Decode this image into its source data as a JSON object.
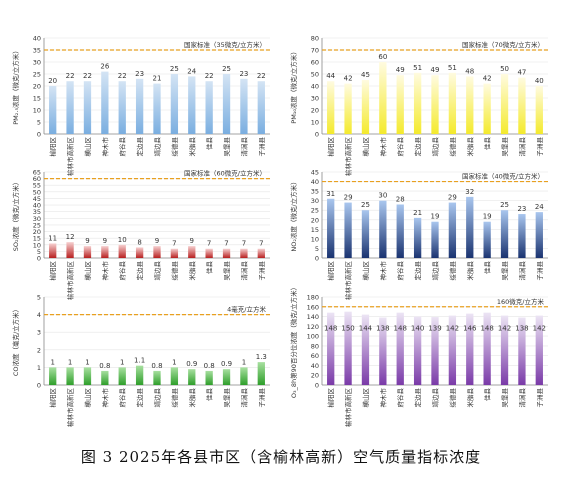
{
  "caption": "图 3   2025年各县市区（含榆林高新）空气质量指标浓度",
  "colors": {
    "threshold": "#e8a020",
    "grid": "#e6e6e6",
    "axis": "#888888",
    "text": "#333333"
  },
  "chart_data": [
    {
      "type": "bar",
      "ylabel": "PM₂.₅浓度（微克/立方米）",
      "ylim": [
        0,
        40
      ],
      "yticks": [
        0,
        5,
        10,
        15,
        20,
        25,
        30,
        35,
        40
      ],
      "threshold": {
        "value": 35,
        "label": "国家标准（35微克/立方米）"
      },
      "gradient": [
        "#d4e4f4",
        "#7aaee0"
      ],
      "categories": [
        "榆阳区",
        "榆林市高新区",
        "横山区",
        "神木市",
        "府谷县",
        "定边县",
        "靖边县",
        "绥德县",
        "米脂县",
        "佳县",
        "吴堡县",
        "清涧县",
        "子洲县"
      ],
      "values": [
        20,
        22,
        22,
        26,
        22,
        23,
        21,
        25,
        24,
        22,
        25,
        23,
        22
      ],
      "value_labels": [
        "20",
        "22",
        "22",
        "26",
        "22",
        "23",
        "21",
        "25",
        "24",
        "22",
        "25",
        "23",
        "22"
      ],
      "label_position": "top"
    },
    {
      "type": "bar",
      "ylabel": "PM₁₀浓度（微克/立方米）",
      "ylim": [
        0,
        80
      ],
      "yticks": [
        0,
        10,
        20,
        30,
        40,
        50,
        60,
        70,
        80
      ],
      "threshold": {
        "value": 70,
        "label": "国家标准（70微克/立方米）"
      },
      "gradient": [
        "#fffbe0",
        "#f4ea2c"
      ],
      "categories": [
        "榆阳区",
        "榆林市高新区",
        "横山区",
        "神木市",
        "府谷县",
        "定边县",
        "靖边县",
        "绥德县",
        "米脂县",
        "佳县",
        "吴堡县",
        "清涧县",
        "子洲县"
      ],
      "values": [
        44,
        42,
        45,
        60,
        49,
        51,
        49,
        51,
        48,
        42,
        50,
        47,
        40
      ],
      "value_labels": [
        "44",
        "42",
        "45",
        "60",
        "49",
        "51",
        "49",
        "51",
        "48",
        "42",
        "50",
        "47",
        "40"
      ],
      "label_position": "top"
    },
    {
      "type": "bar",
      "ylabel": "SO₂浓度（微克/立方米）",
      "ylim": [
        0,
        65
      ],
      "yticks": [
        0,
        5,
        10,
        15,
        20,
        25,
        30,
        35,
        40,
        45,
        50,
        55,
        60,
        65
      ],
      "threshold": {
        "value": 60,
        "label": "国家标准（60微克/立方米）"
      },
      "gradient": [
        "#f6d0d0",
        "#b82020"
      ],
      "categories": [
        "榆阳区",
        "榆林市高新区",
        "横山区",
        "神木市",
        "府谷县",
        "定边县",
        "靖边县",
        "绥德县",
        "米脂县",
        "佳县",
        "吴堡县",
        "清涧县",
        "子洲县"
      ],
      "values": [
        11,
        12,
        9,
        9,
        10,
        8,
        9,
        7,
        9,
        7,
        7,
        7,
        7
      ],
      "value_labels": [
        "11",
        "12",
        "9",
        "9",
        "10",
        "8",
        "9",
        "7",
        "9",
        "7",
        "7",
        "7",
        "7"
      ],
      "label_position": "top"
    },
    {
      "type": "bar",
      "ylabel": "NO₂浓度（微克/立方米）",
      "ylim": [
        0,
        45
      ],
      "yticks": [
        0,
        5,
        10,
        15,
        20,
        25,
        30,
        35,
        40,
        45
      ],
      "threshold": {
        "value": 40,
        "label": "国家标准（40微克/立方米）"
      },
      "gradient": [
        "#a9c6ee",
        "#1a3370"
      ],
      "categories": [
        "榆阳区",
        "榆林市高新区",
        "横山区",
        "神木市",
        "府谷县",
        "定边县",
        "靖边县",
        "绥德县",
        "米脂县",
        "佳县",
        "吴堡县",
        "清涧县",
        "子洲县"
      ],
      "values": [
        31,
        29,
        25,
        30,
        28,
        21,
        19,
        29,
        32,
        19,
        25,
        23,
        24
      ],
      "value_labels": [
        "31",
        "29",
        "25",
        "30",
        "28",
        "21",
        "19",
        "29",
        "32",
        "19",
        "25",
        "23",
        "24"
      ],
      "label_position": "top"
    },
    {
      "type": "bar",
      "ylabel": "CO浓度（毫克/立方米）",
      "ylim": [
        0,
        5
      ],
      "yticks": [
        0,
        1,
        2,
        3,
        4,
        5
      ],
      "threshold": {
        "value": 4,
        "label": "4毫克/立方米"
      },
      "gradient": [
        "#a8e0a0",
        "#2e9e2a"
      ],
      "categories": [
        "榆阳区",
        "榆林市高新区",
        "横山区",
        "神木市",
        "府谷县",
        "定边县",
        "靖边县",
        "绥德县",
        "米脂县",
        "佳县",
        "吴堡县",
        "清涧县",
        "子洲县"
      ],
      "values": [
        1,
        1,
        1,
        0.8,
        1,
        1.1,
        0.8,
        1,
        0.9,
        0.8,
        0.9,
        1,
        1.3
      ],
      "value_labels": [
        "1",
        "1",
        "1",
        "0.8",
        "1",
        "1.1",
        "0.8",
        "1",
        "0.9",
        "0.8",
        "0.9",
        "1",
        "1.3"
      ],
      "label_position": "top"
    },
    {
      "type": "bar",
      "ylabel": "O₃_8h第90百分位浓度（微克/立方米）",
      "ylim": [
        0,
        180
      ],
      "yticks": [
        0,
        20,
        40,
        60,
        80,
        100,
        120,
        140,
        160,
        180
      ],
      "threshold": {
        "value": 160,
        "label": "160微克/立方米"
      },
      "gradient": [
        "#ece4f4",
        "#7a3aa8"
      ],
      "categories": [
        "榆阳区",
        "榆林市高新区",
        "横山区",
        "神木市",
        "府谷县",
        "定边县",
        "靖边县",
        "绥德县",
        "米脂县",
        "佳县",
        "吴堡县",
        "清涧县",
        "子洲县"
      ],
      "values": [
        148,
        150,
        144,
        138,
        148,
        140,
        139,
        142,
        146,
        148,
        142,
        138,
        142
      ],
      "value_labels": [
        "148",
        "150",
        "144",
        "138",
        "148",
        "140",
        "139",
        "142",
        "146",
        "148",
        "142",
        "138",
        "142"
      ],
      "label_position": "inside"
    }
  ]
}
